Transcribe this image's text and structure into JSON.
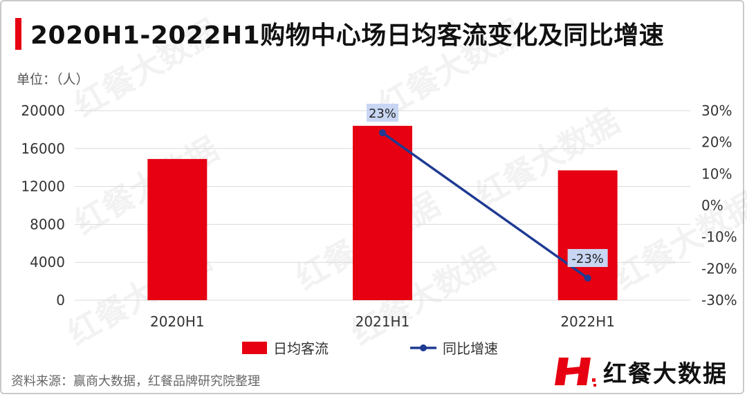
{
  "header": {
    "title": "2020H1-2022H1购物中心场日均客流变化及同比增速",
    "unit": "单位：（人）"
  },
  "footer": {
    "source": "资料来源：赢商大数据，红餐品牌研究院整理"
  },
  "brand": {
    "name": "红餐大数据",
    "icon": "brand-h-logo",
    "color": "#e60012"
  },
  "watermark_text": "红餐大数据",
  "chart_data": {
    "type": "bar",
    "categories": [
      "2020H1",
      "2021H1",
      "2022H1"
    ],
    "series": [
      {
        "name": "日均客流",
        "type": "bar",
        "axis": "left",
        "color": "#e60012",
        "values": [
          14900,
          18400,
          13700
        ]
      },
      {
        "name": "同比增速",
        "type": "line",
        "axis": "right",
        "color": "#1f3a93",
        "values": [
          null,
          23,
          -23
        ],
        "labels": [
          "",
          "23%",
          "-23%"
        ]
      }
    ],
    "y_left": {
      "ylim": [
        0,
        20000
      ],
      "ticks": [
        "0",
        "4000",
        "8000",
        "12000",
        "16000",
        "20000"
      ]
    },
    "y_right": {
      "ylim": [
        -30,
        30
      ],
      "ticks": [
        "-30%",
        "-20%",
        "-10%",
        "0%",
        "10%",
        "20%",
        "30%"
      ]
    },
    "grid": true,
    "legend_position": "bottom"
  }
}
